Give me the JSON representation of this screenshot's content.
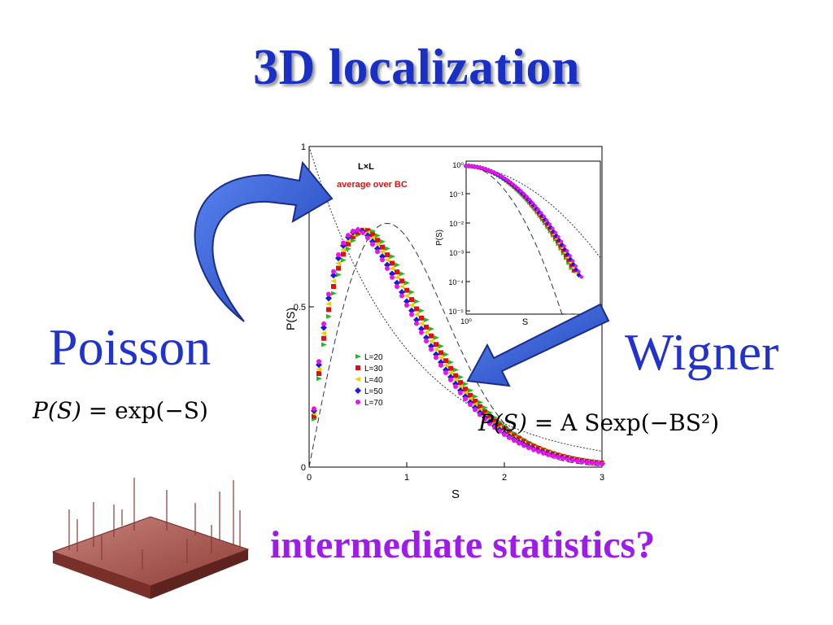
{
  "slide": {
    "title": "3D localization",
    "poisson_label": "Poisson",
    "poisson_formula": {
      "lhs": "P(S)",
      "eq": " = ",
      "rhs": "exp(−S)"
    },
    "wigner_label": "Wigner",
    "wigner_formula": {
      "lhs": "P(S)",
      "eq": " = ",
      "rhs": "A Sexp(−BS²)"
    },
    "question": "intermediate statistics?"
  },
  "colors": {
    "title": "#1a2fc4",
    "labels": "#2233cc",
    "question": "#9f1ce8",
    "arrow": "#2f5fe0",
    "surface": "#a9574f"
  },
  "chart_data": {
    "type": "scatter",
    "title_lines": [
      "L×L",
      "average over BC"
    ],
    "xlabel": "S",
    "ylabel": "P(S)",
    "xlim": [
      0,
      3
    ],
    "ylim": [
      0,
      1
    ],
    "xticks": [
      "0",
      "1",
      "2",
      "3"
    ],
    "yticks": [
      "0",
      "0.5",
      "1"
    ],
    "legend_position": "middle-left",
    "series": [
      {
        "name": "L=20",
        "color": "#22bb22",
        "marker": "triangle-right",
        "peak_x": 0.62
      },
      {
        "name": "L=30",
        "color": "#e01010",
        "marker": "square",
        "peak_x": 0.58
      },
      {
        "name": "L=40",
        "color": "#e6d400",
        "marker": "triangle-left",
        "peak_x": 0.55
      },
      {
        "name": "L=50",
        "color": "#1a1ad8",
        "marker": "diamond",
        "peak_x": 0.52
      },
      {
        "name": "L=70",
        "color": "#ee11ee",
        "marker": "circle",
        "peak_x": 0.5
      }
    ],
    "reference_curves": [
      {
        "kind": "poisson",
        "formula": "exp(-S)",
        "style": "dash-dot"
      },
      {
        "kind": "wigner",
        "formula": "(pi/2) S exp(-pi S^2/4)",
        "style": "dashed"
      }
    ],
    "inset": {
      "xlabel": "S",
      "ylabel": "P(S)",
      "yscale": "log",
      "yticks": [
        "10⁰",
        "10⁻¹",
        "10⁻²",
        "10⁻³",
        "10⁻⁴",
        "10⁻⁵"
      ],
      "xticks": [
        "10⁰"
      ]
    }
  }
}
